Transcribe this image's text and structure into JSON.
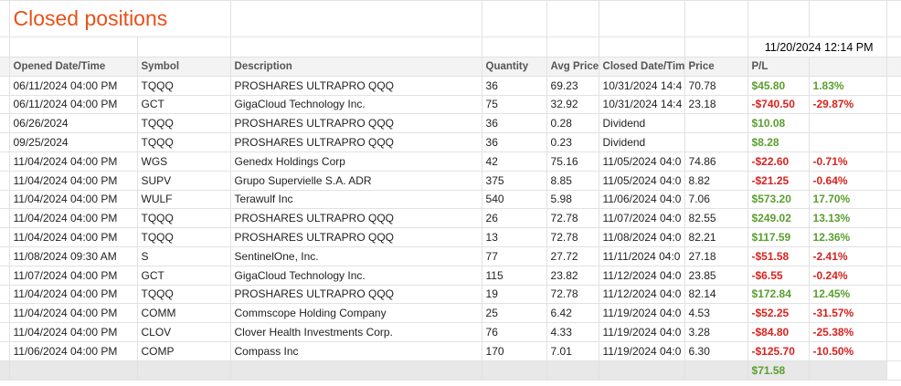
{
  "title": "Closed positions",
  "timestamp": "11/20/2024 12:14 PM",
  "table": {
    "columns": [
      "Opened Date/Time",
      "Symbol",
      "Description",
      "Quantity",
      "Avg Price",
      "Closed Date/Tim",
      "Price",
      "P/L"
    ],
    "rows": [
      [
        "06/11/2024 04:00 PM",
        "TQQQ",
        "PROSHARES ULTRAPRO QQQ",
        "36",
        "69.23",
        "10/31/2024 14:4",
        "70.78",
        "$45.80",
        "1.83%"
      ],
      [
        "06/11/2024 04:00 PM",
        "GCT",
        "GigaCloud Technology Inc.",
        "75",
        "32.92",
        "10/31/2024 14:4",
        "23.18",
        "-$740.50",
        "-29.87%"
      ],
      [
        "06/26/2024",
        "TQQQ",
        "PROSHARES ULTRAPRO QQQ",
        "36",
        "0.28",
        "Dividend",
        null,
        "$10.08",
        null
      ],
      [
        "09/25/2024",
        "TQQQ",
        "PROSHARES ULTRAPRO QQQ",
        "36",
        "0.23",
        "Dividend",
        null,
        "$8.28",
        null
      ],
      [
        "11/04/2024 04:00 PM",
        "WGS",
        "Genedx Holdings Corp",
        "42",
        "75.16",
        "11/05/2024 04:0",
        "74.86",
        "-$22.60",
        "-0.71%"
      ],
      [
        "11/04/2024 04:00 PM",
        "SUPV",
        "Grupo Supervielle S.A. ADR",
        "375",
        "8.85",
        "11/05/2024 04:0",
        "8.82",
        "-$21.25",
        "-0.64%"
      ],
      [
        "11/04/2024 04:00 PM",
        "WULF",
        "Terawulf Inc",
        "540",
        "5.98",
        "11/06/2024 04:0",
        "7.06",
        "$573.20",
        "17.70%"
      ],
      [
        "11/04/2024 04:00 PM",
        "TQQQ",
        "PROSHARES ULTRAPRO QQQ",
        "26",
        "72.78",
        "11/07/2024 04:0",
        "82.55",
        "$249.02",
        "13.13%"
      ],
      [
        "11/04/2024 04:00 PM",
        "TQQQ",
        "PROSHARES ULTRAPRO QQQ",
        "13",
        "72.78",
        "11/08/2024 04:0",
        "82.21",
        "$117.59",
        "12.36%"
      ],
      [
        "11/08/2024 09:30 AM",
        "S",
        "SentinelOne, Inc.",
        "77",
        "27.72",
        "11/11/2024 04:0",
        "27.18",
        "-$51.58",
        "-2.41%"
      ],
      [
        "11/07/2024 04:00 PM",
        "GCT",
        "GigaCloud Technology Inc.",
        "115",
        "23.82",
        "11/12/2024 04:0",
        "23.85",
        "-$6.55",
        "-0.24%"
      ],
      [
        "11/04/2024 04:00 PM",
        "TQQQ",
        "PROSHARES ULTRAPRO QQQ",
        "19",
        "72.78",
        "11/12/2024 04:0",
        "82.14",
        "$172.84",
        "12.45%"
      ],
      [
        "11/04/2024 04:00 PM",
        "COMM",
        "Commscope Holding Company",
        "25",
        "6.42",
        "11/19/2024 04:0",
        "4.53",
        "-$52.25",
        "-31.57%"
      ],
      [
        "11/04/2024 04:00 PM",
        "CLOV",
        "Clover Health Investments Corp.",
        "76",
        "4.33",
        "11/19/2024 04:0",
        "3.28",
        "-$84.80",
        "-25.38%"
      ],
      [
        "11/06/2024 04:00 PM",
        "COMP",
        "Compass Inc",
        "170",
        "7.01",
        "11/19/2024 04:0",
        "6.30",
        "-$125.70",
        "-10.50%"
      ]
    ],
    "total": "$71.58"
  }
}
